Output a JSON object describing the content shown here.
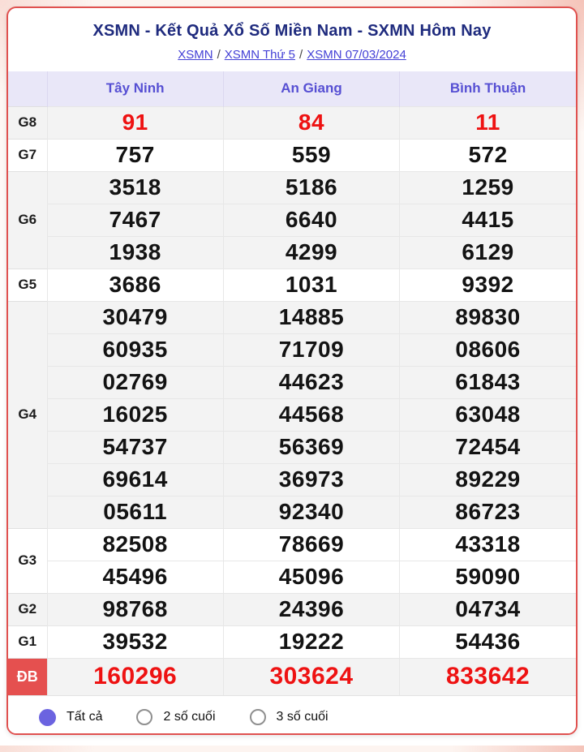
{
  "header": {
    "title": "XSMN - Kết Quả Xổ Số Miền Nam - SXMN Hôm Nay",
    "breadcrumb": [
      {
        "label": "XSMN"
      },
      {
        "label": "XSMN Thứ 5"
      },
      {
        "label": "XSMN 07/03/2024"
      }
    ],
    "breadcrumb_separator": "/"
  },
  "results": {
    "provinces": [
      "Tây Ninh",
      "An Giang",
      "Bình Thuận"
    ],
    "groups": [
      {
        "prize": "G8",
        "highlight": true,
        "special": false,
        "rows": [
          [
            "91",
            "84",
            "11"
          ]
        ]
      },
      {
        "prize": "G7",
        "highlight": false,
        "special": false,
        "rows": [
          [
            "757",
            "559",
            "572"
          ]
        ]
      },
      {
        "prize": "G6",
        "highlight": false,
        "special": false,
        "rows": [
          [
            "3518",
            "5186",
            "1259"
          ],
          [
            "7467",
            "6640",
            "4415"
          ],
          [
            "1938",
            "4299",
            "6129"
          ]
        ]
      },
      {
        "prize": "G5",
        "highlight": false,
        "special": false,
        "rows": [
          [
            "3686",
            "1031",
            "9392"
          ]
        ]
      },
      {
        "prize": "G4",
        "highlight": false,
        "special": false,
        "rows": [
          [
            "30479",
            "14885",
            "89830"
          ],
          [
            "60935",
            "71709",
            "08606"
          ],
          [
            "02769",
            "44623",
            "61843"
          ],
          [
            "16025",
            "44568",
            "63048"
          ],
          [
            "54737",
            "56369",
            "72454"
          ],
          [
            "69614",
            "36973",
            "89229"
          ],
          [
            "05611",
            "92340",
            "86723"
          ]
        ]
      },
      {
        "prize": "G3",
        "highlight": false,
        "special": false,
        "rows": [
          [
            "82508",
            "78669",
            "43318"
          ],
          [
            "45496",
            "45096",
            "59090"
          ]
        ]
      },
      {
        "prize": "G2",
        "highlight": false,
        "special": false,
        "rows": [
          [
            "98768",
            "24396",
            "04734"
          ]
        ]
      },
      {
        "prize": "G1",
        "highlight": false,
        "special": false,
        "rows": [
          [
            "39532",
            "19222",
            "54436"
          ]
        ]
      },
      {
        "prize": "ĐB",
        "highlight": true,
        "special": true,
        "rows": [
          [
            "160296",
            "303624",
            "833642"
          ]
        ]
      }
    ]
  },
  "filters": {
    "options": [
      {
        "label": "Tất cả",
        "selected": true
      },
      {
        "label": "2 số cuối",
        "selected": false
      },
      {
        "label": "3 số cuối",
        "selected": false
      }
    ]
  },
  "colors": {
    "card_border_red": "#e0514f",
    "special_label_bg": "#e5504f",
    "number_red": "#ee1212",
    "title_navy": "#1f2b7e",
    "link_blue": "#4340d6",
    "header_text_purple": "#564fd3",
    "header_bg_lavender": "#e9e7f8",
    "band_gray": "#f3f3f3",
    "radio_selected_purple": "#6b63e0"
  }
}
